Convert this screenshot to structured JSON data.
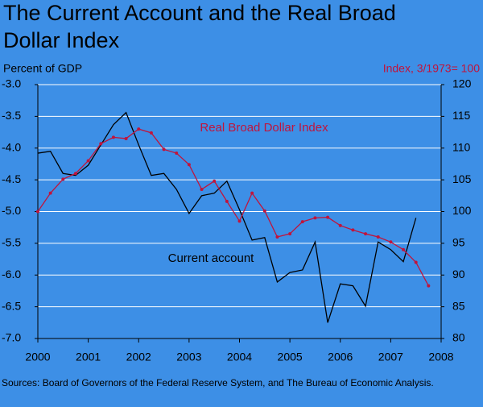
{
  "chart_data": {
    "type": "line",
    "title": "The Current Account and the Real Broad Dollar Index",
    "y_label": "Percent of GDP",
    "y2_label": "Index, 3/1973= 100",
    "source": "Sources: Board of Governors of the Federal Reserve System, and The Bureau of Economic Analysis.",
    "annotations": [
      "Real Broad Dollar Index",
      "Current account"
    ],
    "xlim": [
      2000,
      2008
    ],
    "xticks": [
      2000,
      2001,
      2002,
      2003,
      2004,
      2005,
      2006,
      2007,
      2008
    ],
    "ylim": [
      -7,
      -3
    ],
    "invert_y": true,
    "yticks": [
      {
        "value": -3,
        "label": "-3.0"
      },
      -3.5,
      {
        "value": -4,
        "label": "-4.0"
      },
      -4.5,
      {
        "value": -5,
        "label": "-5.0"
      },
      -5.5,
      {
        "value": -6,
        "label": "-6.0"
      },
      -6.5,
      {
        "value": -7,
        "label": "-7.0"
      }
    ],
    "y2lim": [
      80,
      120
    ],
    "y2ticks": [
      80,
      85,
      90,
      95,
      100,
      105,
      110,
      115,
      120
    ],
    "grid": true,
    "series": [
      {
        "name": "Current account",
        "color": "#000000",
        "markers": false,
        "x": [
          2000,
          2000.25,
          2000.5,
          2000.75,
          2001,
          2001.25,
          2001.5,
          2001.75,
          2002,
          2002.25,
          2002.5,
          2002.75,
          2003,
          2003.25,
          2003.5,
          2003.75,
          2004,
          2004.25,
          2004.5,
          2004.75,
          2005,
          2005.25,
          2005.5,
          2005.75,
          2006,
          2006.25,
          2006.5,
          2006.75,
          2007,
          2007.25,
          2007.5
        ],
        "values": [
          -4.08,
          -4.05,
          -4.4,
          -4.43,
          -4.27,
          -3.95,
          -3.63,
          -3.44,
          -3.95,
          -4.43,
          -4.4,
          -4.65,
          -5.03,
          -4.75,
          -4.71,
          -4.52,
          -4.97,
          -5.45,
          -5.41,
          -6.11,
          -5.96,
          -5.92,
          -5.48,
          -6.75,
          -6.14,
          -6.17,
          -6.49,
          -5.48,
          -5.6,
          -5.79,
          -5.1
        ]
      },
      {
        "name": "Real Broad Dollar Index",
        "color": "#c0143c",
        "axis": "y2",
        "markers": true,
        "x": [
          2000,
          2000.25,
          2000.5,
          2000.75,
          2001,
          2001.25,
          2001.5,
          2001.75,
          2002,
          2002.25,
          2002.5,
          2002.75,
          2003,
          2003.25,
          2003.5,
          2003.75,
          2004,
          2004.25,
          2004.5,
          2004.75,
          2005,
          2005.25,
          2005.5,
          2005.75,
          2006,
          2006.25,
          2006.5,
          2006.75,
          2007,
          2007.25,
          2007.5,
          2007.75
        ],
        "values": [
          100,
          102.9,
          105.1,
          106,
          108,
          110.7,
          111.7,
          111.5,
          113,
          112.4,
          109.8,
          109.2,
          107.4,
          103.5,
          104.8,
          101.6,
          98.5,
          102.9,
          100.1,
          96,
          96.5,
          98.4,
          99,
          99.1,
          97.8,
          97.1,
          96.5,
          96,
          95.2,
          94,
          92,
          88.3
        ]
      }
    ]
  }
}
